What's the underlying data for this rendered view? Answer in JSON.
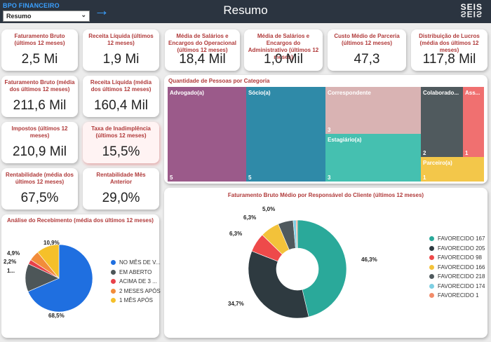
{
  "header": {
    "brand": "BPO FINANCEIRO",
    "select_value": "Resumo",
    "title": "Resumo",
    "logo": "SEIS"
  },
  "kpis": [
    {
      "label": "Faturamento Bruto (últimos 12 meses)",
      "value": "2,5 Mi"
    },
    {
      "label": "Receita Líquida (últimos 12 meses)",
      "value": "1,9 Mi"
    },
    {
      "label": "Média de Salários e Encargos do Operacional (últimos 12 meses)",
      "value": "18,4 Mil"
    },
    {
      "label": "Média de Salários e Encargos do Administrativo (últimos 12 meses)",
      "value": "1,0 Mil"
    },
    {
      "label": "Custo Médio de Parceria (últimos 12 meses)",
      "value": "47,3"
    },
    {
      "label": "Distribuição de Lucros (média dos últimos 12 meses)",
      "value": "117,8 Mil"
    },
    {
      "label": "Faturamento Bruto (média dos últimos 12 meses)",
      "value": "211,6 Mil"
    },
    {
      "label": "Receita Líquida (média dos últimos 12 meses)",
      "value": "160,4 Mil"
    },
    {
      "label": "Impostos (últimos 12 meses)",
      "value": "210,9 Mil"
    },
    {
      "label": "Taxa de Inadimplência (últimos 12 meses)",
      "value": "15,5%"
    },
    {
      "label": "Rentabilidade (média dos últimos 12 meses)",
      "value": "67,5%"
    },
    {
      "label": "Rentabilidade Mês Anterior",
      "value": "29,0%"
    }
  ],
  "treemap": {
    "title": "Quantidade de Pessoas por Categoria",
    "tiles": [
      {
        "name": "Advogado(a)",
        "count": "5",
        "color": "#9b5a8a"
      },
      {
        "name": "Sócio(a)",
        "count": "5",
        "color": "#2f8aa8"
      },
      {
        "name": "Correspondente",
        "count": "3",
        "color": "#d9b3b3"
      },
      {
        "name": "Estagiário(a)",
        "count": "3",
        "color": "#45c0b0"
      },
      {
        "name": "Colaborado...",
        "count": "2",
        "color": "#505a5e"
      },
      {
        "name": "Ass...",
        "count": "1",
        "color": "#f07070"
      },
      {
        "name": "Parceiro(a)",
        "count": "1",
        "color": "#f3c74a"
      }
    ]
  },
  "recebimento": {
    "title": "Análise do Recebimento (média dos últimos 12 meses)",
    "labels": [
      "68,5%",
      "1...",
      "2,2%",
      "4,9%",
      "10,9%"
    ],
    "legend": [
      {
        "label": "NO MÊS DE V...",
        "color": "#1f6fe0"
      },
      {
        "label": "EM ABERTO",
        "color": "#4d5658"
      },
      {
        "label": "ACIMA DE 3 ...",
        "color": "#e8414a"
      },
      {
        "label": "2 MESES APÓS",
        "color": "#f28c3a"
      },
      {
        "label": "1 MÊS APÓS",
        "color": "#f5c02a"
      }
    ]
  },
  "faturamento_resp": {
    "title": "Faturamento Bruto Médio por Responsável do Cliente (últimos 12 meses)",
    "labels": [
      "46,3%",
      "34,7%",
      "6,3%",
      "6,3%",
      "5,0%"
    ],
    "legend": [
      {
        "label": "FAVORECIDO 167",
        "color": "#2aa99a"
      },
      {
        "label": "FAVORECIDO 205",
        "color": "#2e3a40"
      },
      {
        "label": "FAVORECIDO 98",
        "color": "#ee4a4a"
      },
      {
        "label": "FAVORECIDO 166",
        "color": "#f3c23a"
      },
      {
        "label": "FAVORECIDO 218",
        "color": "#505a5e"
      },
      {
        "label": "FAVORECIDO 174",
        "color": "#7ecfe3"
      },
      {
        "label": "FAVORECIDO 1",
        "color": "#f28c6a"
      }
    ]
  },
  "chart_data": [
    {
      "type": "pie",
      "title": "Análise do Recebimento (média dos últimos 12 meses)",
      "categories": [
        "NO MÊS DE V...",
        "EM ABERTO",
        "ACIMA DE 3 ...",
        "2 MESES APÓS",
        "1 MÊS APÓS"
      ],
      "values": [
        68.5,
        13.5,
        2.2,
        4.9,
        10.9
      ],
      "legend": "right"
    },
    {
      "type": "pie",
      "title": "Faturamento Bruto Médio por Responsável do Cliente (últimos 12 meses)",
      "categories": [
        "FAVORECIDO 167",
        "FAVORECIDO 205",
        "FAVORECIDO 98",
        "FAVORECIDO 166",
        "FAVORECIDO 218",
        "FAVORECIDO 174",
        "FAVORECIDO 1"
      ],
      "values": [
        46.3,
        34.7,
        6.3,
        6.3,
        5.0,
        1.0,
        0.4
      ],
      "donut": true,
      "legend": "right"
    }
  ]
}
